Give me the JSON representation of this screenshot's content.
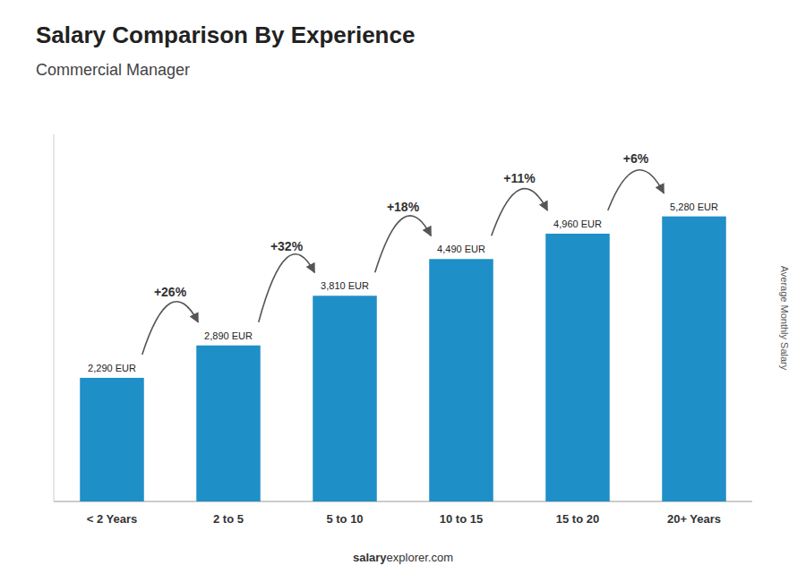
{
  "chart_data": {
    "type": "bar",
    "title": "Salary Comparison By Experience",
    "subtitle": "Commercial Manager",
    "y_label": "Average Monthly Salary",
    "categories": [
      "< 2 Years",
      "2 to 5",
      "5 to 10",
      "10 to 15",
      "15 to 20",
      "20+ Years"
    ],
    "values": [
      2290,
      2890,
      3810,
      4490,
      4960,
      5280
    ],
    "value_labels": [
      "2,290 EUR",
      "2,890 EUR",
      "3,810 EUR",
      "4,490 EUR",
      "4,960 EUR",
      "5,280 EUR"
    ],
    "data_labels": true,
    "annotations": [
      "+26%",
      "+32%",
      "+18%",
      "+11%",
      "+6%"
    ],
    "footer": [
      "salary",
      "explorer.com"
    ],
    "color": "#1f8fc7",
    "ylim": [
      0,
      6800
    ],
    "tick_labels": "x",
    "grid": false
  }
}
